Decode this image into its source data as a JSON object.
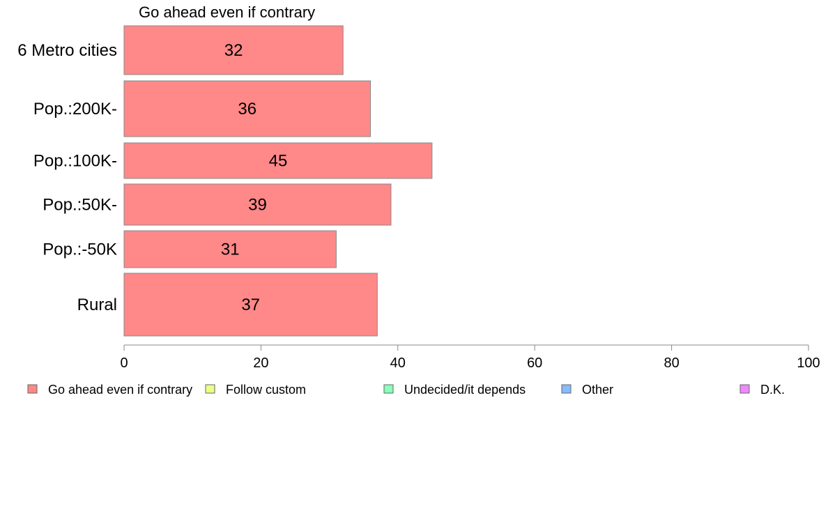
{
  "chart_data": {
    "type": "bar",
    "orientation": "horizontal",
    "title": "Go ahead even if contrary",
    "categories": [
      "6 Metro cities",
      "Pop.:200K-",
      "Pop.:100K-",
      "Pop.:50K-",
      "Pop.:-50K",
      "Rural"
    ],
    "series": [
      {
        "name": "Go ahead even if contrary",
        "color": "#ff8888",
        "values": [
          32,
          36,
          45,
          39,
          31,
          37
        ]
      }
    ],
    "xlim": [
      0,
      100
    ],
    "xticks": [
      "0",
      "20",
      "40",
      "60",
      "80",
      "100"
    ],
    "grid": false,
    "legend": {
      "placement": "bottom",
      "items": [
        {
          "label": "Go ahead even if contrary",
          "color": "#ff8888"
        },
        {
          "label": "Follow custom",
          "color": "#eeff88"
        },
        {
          "label": "Undecided/it depends",
          "color": "#88ffbb"
        },
        {
          "label": "Other",
          "color": "#88bbff"
        },
        {
          "label": "D.K.",
          "color": "#ee88ff"
        }
      ]
    }
  }
}
